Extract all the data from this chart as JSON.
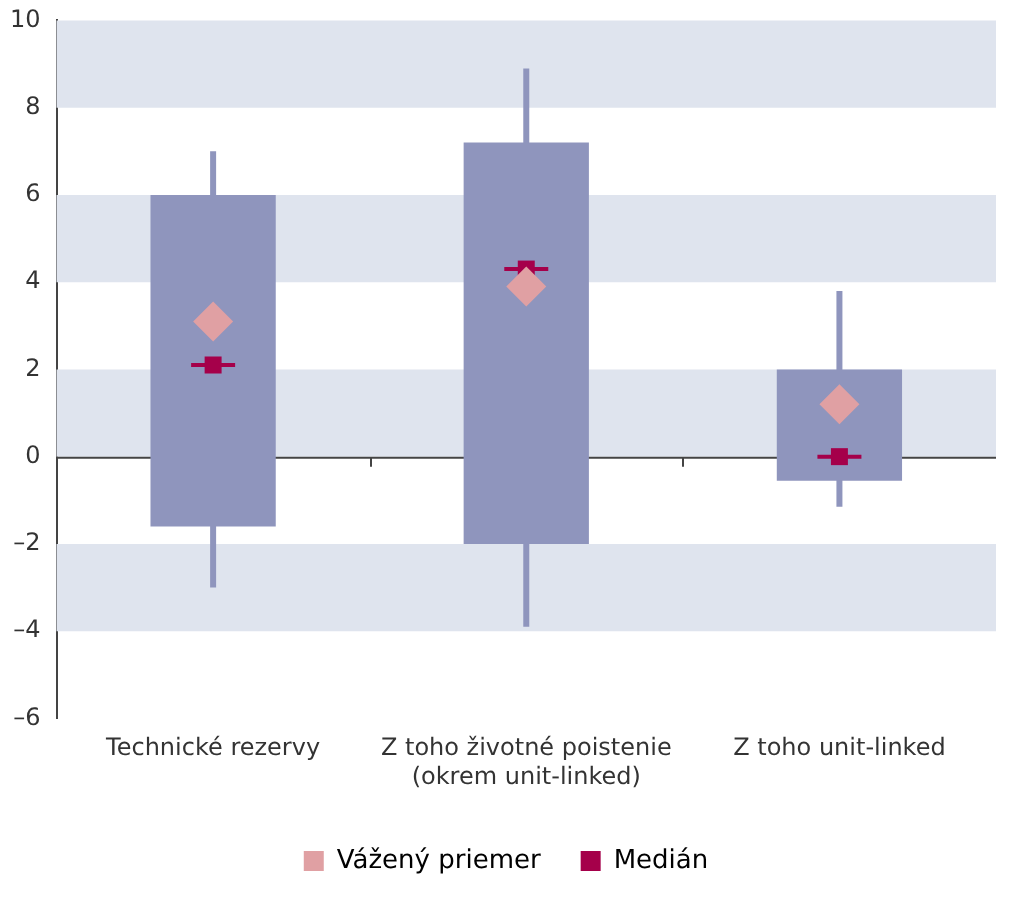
{
  "chart_data": {
    "type": "box",
    "categories": [
      "Technické rezervy",
      "Z toho životné poistenie\n(okrem unit-linked)",
      "Z toho unit-linked"
    ],
    "series": [
      {
        "type": "box",
        "color": "#8f95bd",
        "boxes": [
          {
            "low": -3.0,
            "q1": -1.6,
            "median": 2.1,
            "q3": 6.0,
            "high": 7.0
          },
          {
            "low": -3.9,
            "q1": -2.0,
            "median": 4.3,
            "q3": 7.2,
            "high": 8.9
          },
          {
            "low": -1.15,
            "q1": -0.55,
            "median": 0,
            "q3": 2.0,
            "high": 3.8
          }
        ]
      },
      {
        "type": "scatter",
        "name": "Vážený priemer",
        "color": "#e0a0a3",
        "marker": "diamond",
        "values": [
          3.1,
          3.9,
          1.2
        ]
      },
      {
        "type": "scatter",
        "name": "Medián",
        "color": "#a5004a",
        "marker": "square",
        "values": [
          2.1,
          4.3,
          0
        ]
      }
    ],
    "ylim": [
      -6,
      10
    ],
    "yticks": [
      {
        "value": -6,
        "label": "–6"
      },
      {
        "value": -4,
        "label": "–4"
      },
      {
        "value": -2,
        "label": "–2"
      },
      0,
      2,
      4,
      6,
      8,
      10
    ],
    "bands": [
      {
        "axis": "y",
        "from": 8,
        "to": 10,
        "color": "#dfe4ee"
      },
      {
        "axis": "y",
        "from": 4,
        "to": 6,
        "color": "#dfe4ee"
      },
      {
        "axis": "y",
        "from": 0,
        "to": 2,
        "color": "#dfe4ee"
      },
      {
        "axis": "y",
        "from": -4,
        "to": -2,
        "color": "#dfe4ee"
      }
    ],
    "legend": "bottom"
  }
}
